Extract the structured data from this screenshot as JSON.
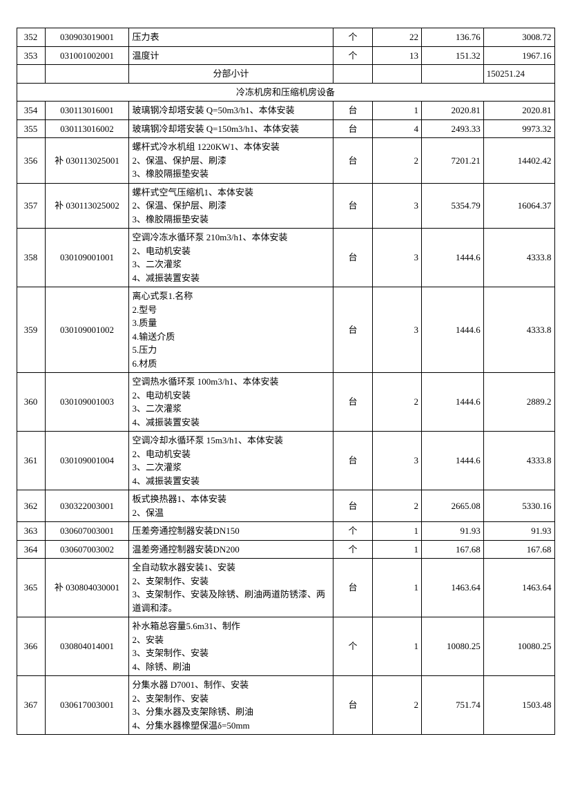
{
  "subtotal": {
    "label": "分部小计",
    "value": "150251.24"
  },
  "section_header": "冷冻机房和压缩机房设备",
  "rows": [
    {
      "no": "352",
      "code": "030903019001",
      "desc_lines": [
        "压力表"
      ],
      "unit": "个",
      "qty": "22",
      "price": "136.76",
      "total": "3008.72"
    },
    {
      "no": "353",
      "code": "031001002001",
      "desc_lines": [
        "温度计"
      ],
      "unit": "个",
      "qty": "13",
      "price": "151.32",
      "total": "1967.16"
    },
    {
      "no": "354",
      "code": "030113016001",
      "desc_lines": [
        "玻璃钢冷却塔安装 Q=50m3/h1、本体安装"
      ],
      "unit": "台",
      "qty": "1",
      "price": "2020.81",
      "total": "2020.81"
    },
    {
      "no": "355",
      "code": "030113016002",
      "desc_lines": [
        "玻璃钢冷却塔安装 Q=150m3/h1、本体安装"
      ],
      "unit": "台",
      "qty": "4",
      "price": "2493.33",
      "total": "9973.32"
    },
    {
      "no": "356",
      "code": "补 030113025001",
      "desc_lines": [
        "螺杆式冷水机组 1220KW1、本体安装",
        "2、保温、保护层、刷漆",
        "3、橡胶隔振垫安装"
      ],
      "unit": "台",
      "qty": "2",
      "price": "7201.21",
      "total": "14402.42"
    },
    {
      "no": "357",
      "code": "补 030113025002",
      "desc_lines": [
        "螺杆式空气压缩机1、本体安装",
        "2、保温、保护层、刷漆",
        "3、橡胶隔振垫安装"
      ],
      "unit": "台",
      "qty": "3",
      "price": "5354.79",
      "total": "16064.37"
    },
    {
      "no": "358",
      "code": "030109001001",
      "desc_lines": [
        "空调冷冻水循环泵 210m3/h1、本体安装",
        "2、电动机安装",
        "3、二次灌浆",
        "4、减振装置安装"
      ],
      "unit": "台",
      "qty": "3",
      "price": "1444.6",
      "total": "4333.8"
    },
    {
      "no": "359",
      "code": "030109001002",
      "desc_lines": [
        "离心式泵1.名称",
        "2.型号",
        "3.质量",
        "4.输送介质",
        "5.压力",
        "6.材质"
      ],
      "unit": "台",
      "qty": "3",
      "price": "1444.6",
      "total": "4333.8"
    },
    {
      "no": "360",
      "code": "030109001003",
      "desc_lines": [
        "空调热水循环泵 100m3/h1、本体安装",
        "2、电动机安装",
        "3、二次灌浆",
        "4、减振装置安装"
      ],
      "unit": "台",
      "qty": "2",
      "price": "1444.6",
      "total": "2889.2"
    },
    {
      "no": "361",
      "code": "030109001004",
      "desc_lines": [
        "空调冷却水循环泵 15m3/h1、本体安装",
        "2、电动机安装",
        "3、二次灌浆",
        "4、减振装置安装"
      ],
      "unit": "台",
      "qty": "3",
      "price": "1444.6",
      "total": "4333.8"
    },
    {
      "no": "362",
      "code": "030322003001",
      "desc_lines": [
        "板式换热器1、本体安装",
        "2、保温"
      ],
      "unit": "台",
      "qty": "2",
      "price": "2665.08",
      "total": "5330.16"
    },
    {
      "no": "363",
      "code": "030607003001",
      "desc_lines": [
        "压差旁通控制器安装DN150"
      ],
      "unit": "个",
      "qty": "1",
      "price": "91.93",
      "total": "91.93"
    },
    {
      "no": "364",
      "code": "030607003002",
      "desc_lines": [
        "温差旁通控制器安装DN200"
      ],
      "unit": "个",
      "qty": "1",
      "price": "167.68",
      "total": "167.68"
    },
    {
      "no": "365",
      "code": "补 030804030001",
      "desc_lines": [
        "全自动软水器安装1、安装",
        "2、支架制作、安装",
        "3、支架制作、安装及除锈、刷油两道防锈漆、两道调和漆。"
      ],
      "unit": "台",
      "qty": "1",
      "price": "1463.64",
      "total": "1463.64"
    },
    {
      "no": "366",
      "code": "030804014001",
      "desc_lines": [
        "补水箱总容量5.6m31、制作",
        "2、安装",
        "3、支架制作、安装",
        "4、除锈、刷油"
      ],
      "unit": "个",
      "qty": "1",
      "price": "10080.25",
      "total": "10080.25"
    },
    {
      "no": "367",
      "code": "030617003001",
      "desc_lines": [
        "分集水器 D7001、制作、安装",
        "2、支架制作、安装",
        "3、分集水器及支架除锈、刷油",
        "4、分集水器橡塑保温δ=50mm"
      ],
      "unit": "台",
      "qty": "2",
      "price": "751.74",
      "total": "1503.48"
    }
  ]
}
